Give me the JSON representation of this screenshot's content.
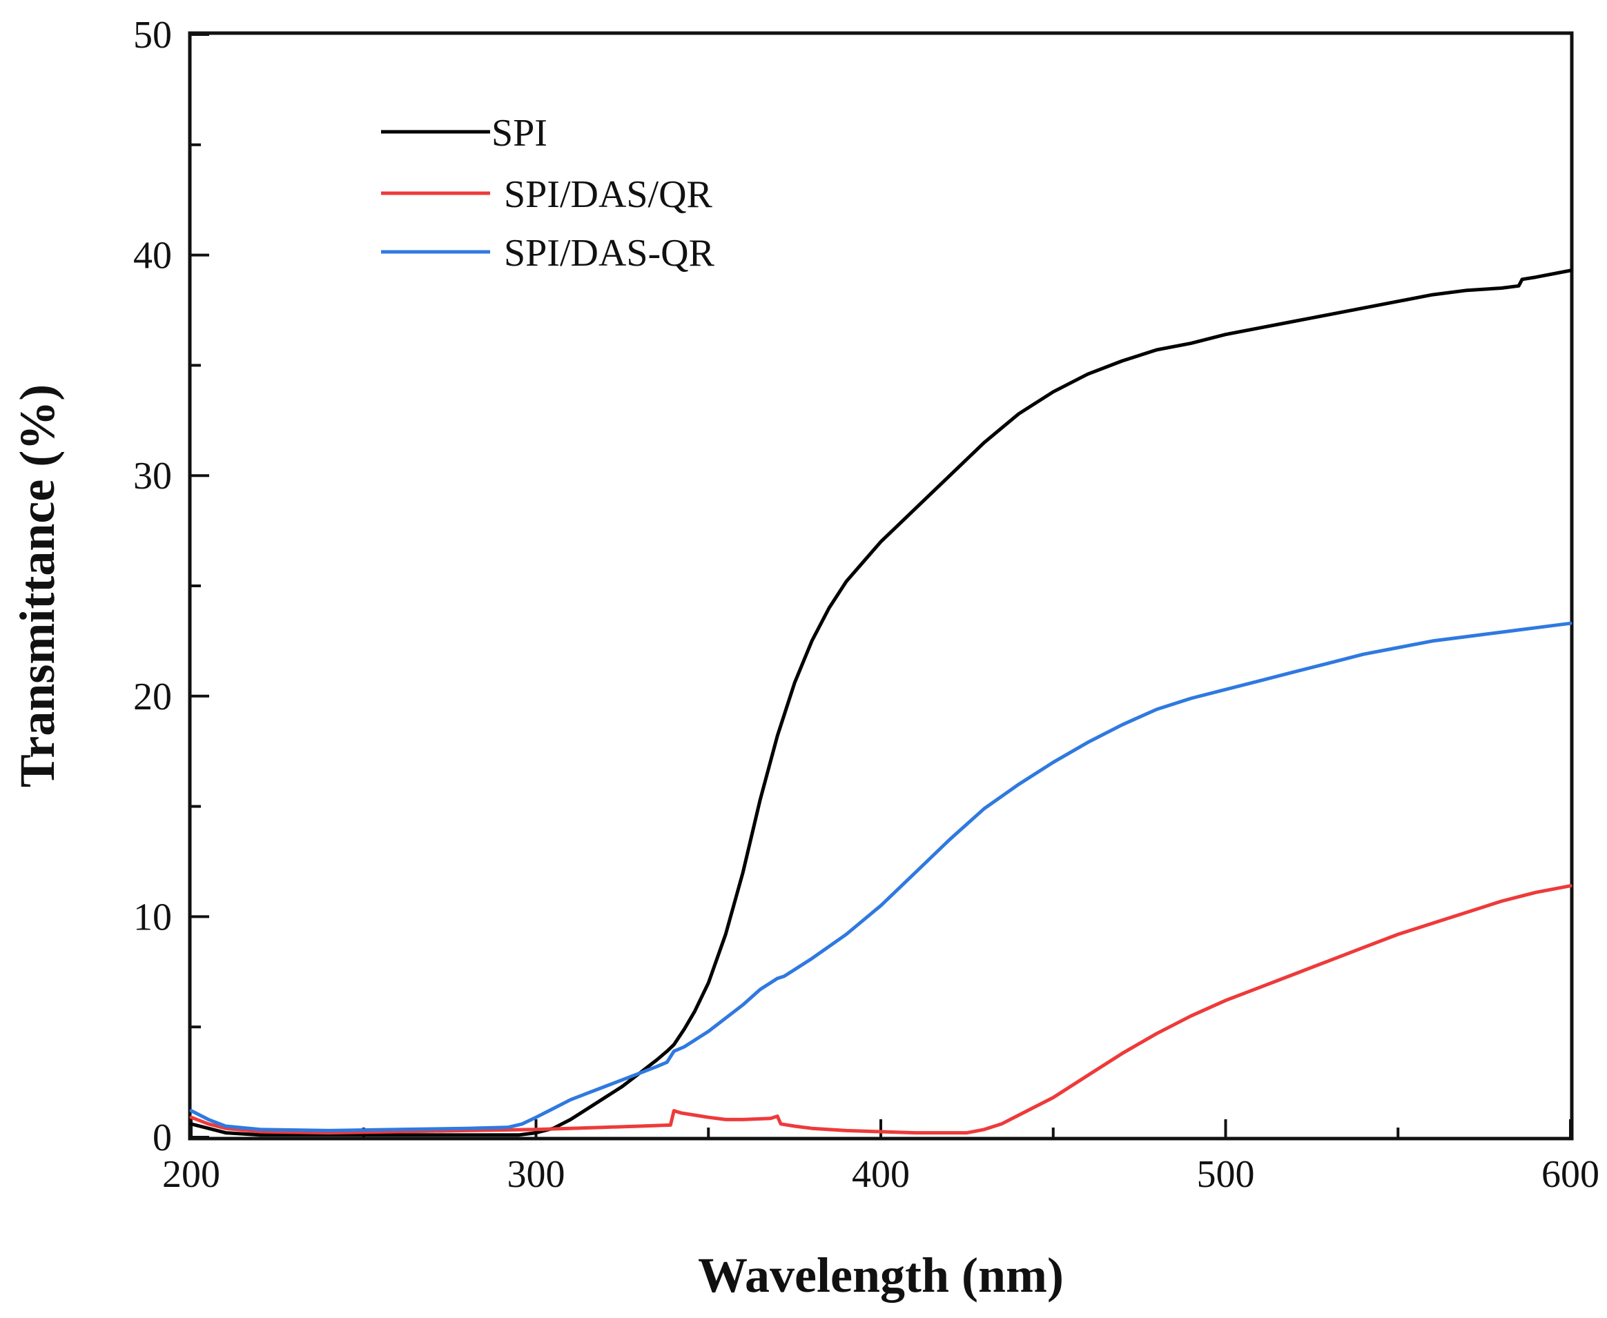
{
  "chart_data": {
    "type": "line",
    "title": "",
    "xlabel": "Wavelength (nm)",
    "ylabel": "Transmittance (%)",
    "xlim": [
      200,
      600
    ],
    "ylim": [
      0,
      50
    ],
    "xticks": [
      "200",
      "300",
      "400",
      "500",
      "600"
    ],
    "yticks": [
      "0",
      "10",
      "20",
      "30",
      "40",
      "50"
    ],
    "legend_position": "top-left",
    "series": [
      {
        "name": "SPI",
        "color": "#000000",
        "points": [
          [
            200,
            0.6
          ],
          [
            205,
            0.4
          ],
          [
            210,
            0.2
          ],
          [
            220,
            0.1
          ],
          [
            240,
            0.1
          ],
          [
            260,
            0.1
          ],
          [
            280,
            0.1
          ],
          [
            295,
            0.1
          ],
          [
            300,
            0.2
          ],
          [
            305,
            0.4
          ],
          [
            310,
            0.8
          ],
          [
            315,
            1.3
          ],
          [
            320,
            1.8
          ],
          [
            325,
            2.3
          ],
          [
            330,
            2.9
          ],
          [
            335,
            3.5
          ],
          [
            338,
            3.9
          ],
          [
            340,
            4.2
          ],
          [
            343,
            4.9
          ],
          [
            346,
            5.7
          ],
          [
            350,
            7.0
          ],
          [
            355,
            9.2
          ],
          [
            360,
            12.0
          ],
          [
            365,
            15.3
          ],
          [
            370,
            18.2
          ],
          [
            375,
            20.6
          ],
          [
            380,
            22.5
          ],
          [
            385,
            24.0
          ],
          [
            390,
            25.2
          ],
          [
            395,
            26.1
          ],
          [
            400,
            27.0
          ],
          [
            410,
            28.5
          ],
          [
            420,
            30.0
          ],
          [
            430,
            31.5
          ],
          [
            440,
            32.8
          ],
          [
            450,
            33.8
          ],
          [
            460,
            34.6
          ],
          [
            470,
            35.2
          ],
          [
            480,
            35.7
          ],
          [
            490,
            36.0
          ],
          [
            500,
            36.4
          ],
          [
            510,
            36.7
          ],
          [
            520,
            37.0
          ],
          [
            530,
            37.3
          ],
          [
            540,
            37.6
          ],
          [
            550,
            37.9
          ],
          [
            560,
            38.2
          ],
          [
            570,
            38.4
          ],
          [
            580,
            38.5
          ],
          [
            585,
            38.6
          ],
          [
            586,
            38.9
          ],
          [
            590,
            39.0
          ],
          [
            600,
            39.3
          ]
        ]
      },
      {
        "name": "SPI/DAS/QR",
        "color": "#ee3a3a",
        "points": [
          [
            200,
            0.9
          ],
          [
            205,
            0.6
          ],
          [
            210,
            0.4
          ],
          [
            220,
            0.25
          ],
          [
            240,
            0.2
          ],
          [
            260,
            0.25
          ],
          [
            280,
            0.3
          ],
          [
            300,
            0.35
          ],
          [
            310,
            0.4
          ],
          [
            320,
            0.45
          ],
          [
            330,
            0.5
          ],
          [
            339,
            0.55
          ],
          [
            340,
            1.2
          ],
          [
            342,
            1.1
          ],
          [
            350,
            0.9
          ],
          [
            355,
            0.8
          ],
          [
            360,
            0.8
          ],
          [
            368,
            0.85
          ],
          [
            370,
            0.95
          ],
          [
            371,
            0.6
          ],
          [
            375,
            0.5
          ],
          [
            380,
            0.4
          ],
          [
            390,
            0.3
          ],
          [
            400,
            0.25
          ],
          [
            410,
            0.2
          ],
          [
            420,
            0.2
          ],
          [
            425,
            0.2
          ],
          [
            430,
            0.35
          ],
          [
            435,
            0.6
          ],
          [
            440,
            1.0
          ],
          [
            450,
            1.8
          ],
          [
            460,
            2.8
          ],
          [
            470,
            3.8
          ],
          [
            480,
            4.7
          ],
          [
            490,
            5.5
          ],
          [
            500,
            6.2
          ],
          [
            510,
            6.8
          ],
          [
            520,
            7.4
          ],
          [
            530,
            8.0
          ],
          [
            540,
            8.6
          ],
          [
            550,
            9.2
          ],
          [
            560,
            9.7
          ],
          [
            570,
            10.2
          ],
          [
            580,
            10.7
          ],
          [
            585,
            10.9
          ],
          [
            590,
            11.1
          ],
          [
            600,
            11.4
          ]
        ]
      },
      {
        "name": "SPI/DAS-QR",
        "color": "#2f79e0",
        "points": [
          [
            200,
            1.2
          ],
          [
            205,
            0.8
          ],
          [
            210,
            0.5
          ],
          [
            220,
            0.35
          ],
          [
            240,
            0.3
          ],
          [
            260,
            0.35
          ],
          [
            280,
            0.4
          ],
          [
            292,
            0.45
          ],
          [
            296,
            0.6
          ],
          [
            300,
            0.9
          ],
          [
            305,
            1.3
          ],
          [
            310,
            1.7
          ],
          [
            315,
            2.0
          ],
          [
            320,
            2.3
          ],
          [
            325,
            2.6
          ],
          [
            330,
            2.9
          ],
          [
            335,
            3.2
          ],
          [
            338,
            3.4
          ],
          [
            340,
            3.9
          ],
          [
            343,
            4.1
          ],
          [
            350,
            4.8
          ],
          [
            360,
            6.0
          ],
          [
            365,
            6.7
          ],
          [
            370,
            7.2
          ],
          [
            372,
            7.3
          ],
          [
            375,
            7.6
          ],
          [
            380,
            8.1
          ],
          [
            390,
            9.2
          ],
          [
            400,
            10.5
          ],
          [
            410,
            12.0
          ],
          [
            420,
            13.5
          ],
          [
            430,
            14.9
          ],
          [
            440,
            16.0
          ],
          [
            450,
            17.0
          ],
          [
            460,
            17.9
          ],
          [
            470,
            18.7
          ],
          [
            480,
            19.4
          ],
          [
            490,
            19.9
          ],
          [
            500,
            20.3
          ],
          [
            510,
            20.7
          ],
          [
            520,
            21.1
          ],
          [
            530,
            21.5
          ],
          [
            540,
            21.9
          ],
          [
            550,
            22.2
          ],
          [
            560,
            22.5
          ],
          [
            570,
            22.7
          ],
          [
            580,
            22.9
          ],
          [
            585,
            23.0
          ],
          [
            590,
            23.1
          ],
          [
            600,
            23.3
          ]
        ]
      }
    ]
  }
}
